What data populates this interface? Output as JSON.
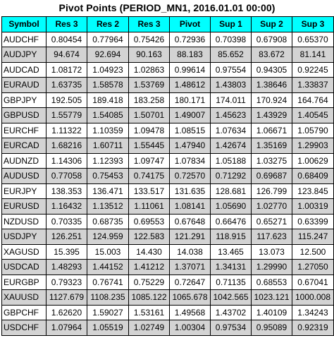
{
  "title": "Pivot Points (PERIOD_MN1, 2016.01.01 00:00)",
  "columns": [
    "Symbol",
    "Res 3",
    "Res 2",
    "Res 3",
    "Pivot",
    "Sup 1",
    "Sup 2",
    "Sup 3"
  ],
  "colors": {
    "header_bg": "#00ffff",
    "row_shade": "#d3d3d3",
    "row_plain": "#ffffff",
    "border": "#000000"
  },
  "rows": [
    [
      "AUDCHF",
      "0.80454",
      "0.77964",
      "0.75426",
      "0.72936",
      "0.70398",
      "0.67908",
      "0.65370"
    ],
    [
      "AUDJPY",
      "94.674",
      "92.694",
      "90.163",
      "88.183",
      "85.652",
      "83.672",
      "81.141"
    ],
    [
      "AUDCAD",
      "1.08172",
      "1.04923",
      "1.02863",
      "0.99614",
      "0.97554",
      "0.94305",
      "0.92245"
    ],
    [
      "EURAUD",
      "1.63735",
      "1.58578",
      "1.53769",
      "1.48612",
      "1.43803",
      "1.38646",
      "1.33837"
    ],
    [
      "GBPJPY",
      "192.505",
      "189.418",
      "183.258",
      "180.171",
      "174.011",
      "170.924",
      "164.764"
    ],
    [
      "GBPUSD",
      "1.55779",
      "1.54085",
      "1.50701",
      "1.49007",
      "1.45623",
      "1.43929",
      "1.40545"
    ],
    [
      "EURCHF",
      "1.11322",
      "1.10359",
      "1.09478",
      "1.08515",
      "1.07634",
      "1.06671",
      "1.05790"
    ],
    [
      "EURCAD",
      "1.68216",
      "1.60711",
      "1.55445",
      "1.47940",
      "1.42674",
      "1.35169",
      "1.29903"
    ],
    [
      "AUDNZD",
      "1.14306",
      "1.12393",
      "1.09747",
      "1.07834",
      "1.05188",
      "1.03275",
      "1.00629"
    ],
    [
      "AUDUSD",
      "0.77058",
      "0.75453",
      "0.74175",
      "0.72570",
      "0.71292",
      "0.69687",
      "0.68409"
    ],
    [
      "EURJPY",
      "138.353",
      "136.471",
      "133.517",
      "131.635",
      "128.681",
      "126.799",
      "123.845"
    ],
    [
      "EURUSD",
      "1.16432",
      "1.13512",
      "1.11061",
      "1.08141",
      "1.05690",
      "1.02770",
      "1.00319"
    ],
    [
      "NZDUSD",
      "0.70335",
      "0.68735",
      "0.69553",
      "0.67648",
      "0.66476",
      "0.65271",
      "0.63399"
    ],
    [
      "USDJPY",
      "126.251",
      "124.959",
      "122.583",
      "121.291",
      "118.915",
      "117.623",
      "115.247"
    ],
    [
      "XAGUSD",
      "15.395",
      "15.003",
      "14.430",
      "14.038",
      "13.465",
      "13.073",
      "12.500"
    ],
    [
      "USDCAD",
      "1.48293",
      "1.44152",
      "1.41212",
      "1.37071",
      "1.34131",
      "1.29990",
      "1.27050"
    ],
    [
      "EURGBP",
      "0.79323",
      "0.76741",
      "0.75229",
      "0.72647",
      "0.71135",
      "0.68553",
      "0.67041"
    ],
    [
      "XAUUSD",
      "1127.679",
      "1108.235",
      "1085.122",
      "1065.678",
      "1042.565",
      "1023.121",
      "1000.008"
    ],
    [
      "GBPCHF",
      "1.62620",
      "1.59027",
      "1.53161",
      "1.49568",
      "1.43702",
      "1.40109",
      "1.34243"
    ],
    [
      "USDCHF",
      "1.07964",
      "1.05519",
      "1.02749",
      "1.00304",
      "0.97534",
      "0.95089",
      "0.92319"
    ]
  ]
}
